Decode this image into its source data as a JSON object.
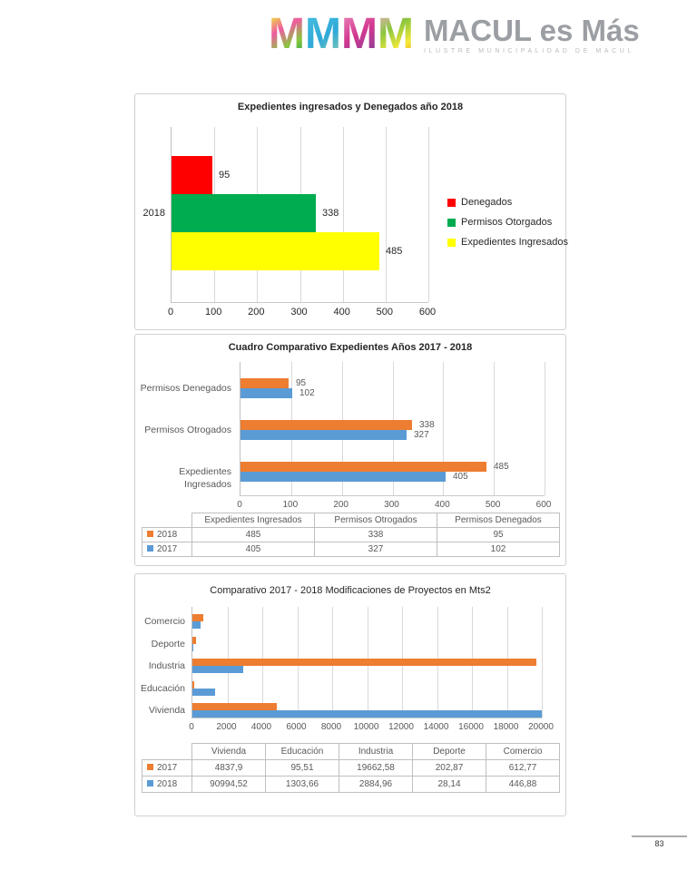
{
  "page": {
    "number": "83"
  },
  "logo": {
    "m_letters": [
      "M",
      "M",
      "M",
      "M"
    ],
    "title": "MACUL es Más",
    "subtitle": "ILUSTRE MUNICIPALIDAD DE MACUL"
  },
  "colors": {
    "red": "#FF0000",
    "green": "#00AC50",
    "yellow": "#FFFF00",
    "orange": "#ED7D31",
    "blue": "#5B9BD5",
    "grid": "#D9D9D9",
    "table_border": "#BFBFBF",
    "muted_text": "#595959"
  },
  "chart_data": [
    {
      "type": "bar",
      "orientation": "horizontal",
      "title": "Expedientes ingresados y Denegados año 2018",
      "categories": [
        "2018"
      ],
      "series": [
        {
          "name": "Denegados",
          "color": "#FF0000",
          "values": [
            95
          ]
        },
        {
          "name": "Permisos Otorgados",
          "color": "#00AC50",
          "values": [
            338
          ]
        },
        {
          "name": "Expedientes Ingresados",
          "color": "#FFFF00",
          "values": [
            485
          ]
        }
      ],
      "data_labels": [
        "95",
        "338",
        "485"
      ],
      "xlim": [
        0,
        600
      ],
      "xticks": [
        "0",
        "100",
        "200",
        "300",
        "400",
        "500",
        "600"
      ],
      "legend_position": "right",
      "grid": true
    },
    {
      "type": "bar",
      "orientation": "horizontal",
      "title": "Cuadro Comparativo Expedientes Años 2017 - 2018",
      "categories": [
        "Permisos Denegados",
        "Permisos Otrogados",
        "Expedientes Ingresados"
      ],
      "series": [
        {
          "name": "2018",
          "color": "#ED7D31",
          "values": [
            95,
            338,
            485
          ]
        },
        {
          "name": "2017",
          "color": "#5B9BD5",
          "values": [
            102,
            327,
            405
          ]
        }
      ],
      "xlim": [
        0,
        600
      ],
      "xticks": [
        "0",
        "100",
        "200",
        "300",
        "400",
        "500",
        "600"
      ],
      "grid": true,
      "table": {
        "col_headers": [
          "Expedientes Ingresados",
          "Permisos Otrogados",
          "Permisos Denegados"
        ],
        "rows": [
          {
            "name": "2018",
            "color": "#ED7D31",
            "cells": [
              "485",
              "338",
              "95"
            ]
          },
          {
            "name": "2017",
            "color": "#5B9BD5",
            "cells": [
              "405",
              "327",
              "102"
            ]
          }
        ]
      }
    },
    {
      "type": "bar",
      "orientation": "horizontal",
      "title": "Comparativo 2017 - 2018 Modificaciones de Proyectos en Mts2",
      "categories": [
        "Comercio",
        "Deporte",
        "Industria",
        "Educación",
        "Vivienda"
      ],
      "series": [
        {
          "name": "2017",
          "color": "#ED7D31",
          "values": [
            612.77,
            202.87,
            19662.58,
            95.51,
            4837.9
          ]
        },
        {
          "name": "2018",
          "color": "#5B9BD5",
          "values": [
            446.88,
            28.14,
            2884.96,
            1303.66,
            90994.52
          ]
        }
      ],
      "xlim": [
        0,
        20000
      ],
      "xticks": [
        "0",
        "2000",
        "4000",
        "6000",
        "8000",
        "10000",
        "12000",
        "14000",
        "16000",
        "18000",
        "20000"
      ],
      "grid": true,
      "table": {
        "col_headers": [
          "Vivienda",
          "Educación",
          "Industria",
          "Deporte",
          "Comercio"
        ],
        "rows": [
          {
            "name": "2017",
            "color": "#ED7D31",
            "cells": [
              "4837,9",
              "95,51",
              "19662,58",
              "202,87",
              "612,77"
            ]
          },
          {
            "name": "2018",
            "color": "#5B9BD5",
            "cells": [
              "90994,52",
              "1303,66",
              "2884,96",
              "28,14",
              "446,88"
            ]
          }
        ]
      }
    }
  ]
}
